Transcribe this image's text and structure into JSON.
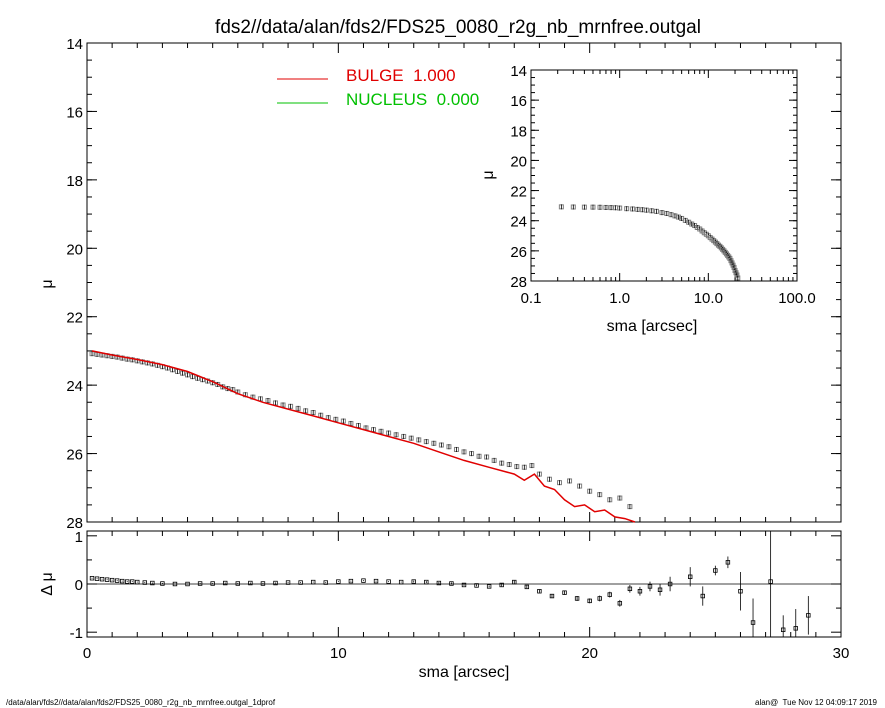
{
  "title": "fds2//data/alan/fds2/FDS25_0080_r2g_nb_mrnfree.outgal",
  "footer_left": "/data/alan/fds2//data/alan/fds2/FDS25_0080_r2g_nb_mrnfree.outgal_1dprof",
  "footer_right": "alan@  Tue Nov 12 04:09:17 2019",
  "colors": {
    "bulge": "#e00000",
    "nucleus": "#00c000",
    "points": "#808080"
  },
  "chart_data": [
    {
      "type": "scatter",
      "panel": "main",
      "xlabel": "",
      "ylabel": "μ",
      "xlim": [
        0,
        30
      ],
      "ylim": [
        28,
        14
      ],
      "xticks": [],
      "yticks": [
        "14",
        "16",
        "18",
        "20",
        "22",
        "24",
        "26",
        "28"
      ],
      "legend": [
        {
          "name": "BULGE  1.000",
          "color": "#e00000"
        },
        {
          "name": "NUCLEUS  0.000",
          "color": "#00c000"
        }
      ],
      "legend_position": "top-left",
      "series": [
        {
          "name": "data",
          "x": [
            0.2,
            0.4,
            0.6,
            0.8,
            1.0,
            1.2,
            1.4,
            1.6,
            1.8,
            2.0,
            2.2,
            2.4,
            2.6,
            2.8,
            3.0,
            3.2,
            3.4,
            3.6,
            3.8,
            4.0,
            4.2,
            4.4,
            4.6,
            4.8,
            5.0,
            5.2,
            5.4,
            5.6,
            5.8,
            6.0,
            6.3,
            6.6,
            6.9,
            7.2,
            7.5,
            7.8,
            8.1,
            8.4,
            8.7,
            9.0,
            9.3,
            9.6,
            9.9,
            10.2,
            10.5,
            10.8,
            11.1,
            11.4,
            11.7,
            12.0,
            12.3,
            12.6,
            12.9,
            13.2,
            13.5,
            13.8,
            14.1,
            14.4,
            14.7,
            15.0,
            15.3,
            15.6,
            15.9,
            16.2,
            16.5,
            16.8,
            17.1,
            17.4,
            17.7,
            18.0,
            18.4,
            18.8,
            19.2,
            19.6,
            20.0,
            20.4,
            20.8,
            21.2,
            21.6
          ],
          "y": [
            23.08,
            23.1,
            23.12,
            23.14,
            23.16,
            23.18,
            23.21,
            23.24,
            23.26,
            23.29,
            23.32,
            23.35,
            23.38,
            23.42,
            23.46,
            23.5,
            23.55,
            23.6,
            23.65,
            23.7,
            23.75,
            23.8,
            23.84,
            23.88,
            23.93,
            23.98,
            24.05,
            24.1,
            24.13,
            24.2,
            24.28,
            24.35,
            24.4,
            24.45,
            24.52,
            24.58,
            24.62,
            24.68,
            24.75,
            24.8,
            24.88,
            24.95,
            25.0,
            25.05,
            25.12,
            25.18,
            25.25,
            25.3,
            25.35,
            25.4,
            25.45,
            25.5,
            25.55,
            25.6,
            25.65,
            25.7,
            25.75,
            25.8,
            25.88,
            25.95,
            26.0,
            26.08,
            26.1,
            26.2,
            26.28,
            26.32,
            26.38,
            26.4,
            26.35,
            26.6,
            26.75,
            26.85,
            26.8,
            26.95,
            27.1,
            27.2,
            27.35,
            27.3,
            27.55
          ]
        },
        {
          "name": "BULGE  1.000",
          "x": [
            0.2,
            1,
            2,
            3,
            4,
            5,
            6,
            7,
            8,
            9,
            10,
            11,
            12,
            13,
            14,
            15,
            16,
            17,
            17.4,
            17.8,
            18.2,
            18.6,
            19,
            19.4,
            19.8,
            20.2,
            20.6,
            21,
            21.4,
            21.8
          ],
          "y": [
            23.0,
            23.12,
            23.25,
            23.4,
            23.6,
            23.9,
            24.25,
            24.5,
            24.7,
            24.9,
            25.1,
            25.3,
            25.5,
            25.7,
            25.95,
            26.2,
            26.4,
            26.6,
            26.78,
            26.6,
            26.95,
            27.05,
            27.35,
            27.55,
            27.5,
            27.7,
            27.65,
            27.85,
            27.9,
            28.0
          ]
        }
      ]
    },
    {
      "type": "scatter",
      "panel": "residual",
      "xlabel": "sma [arcsec]",
      "ylabel": "Δ μ",
      "xlim": [
        0,
        30
      ],
      "ylim": [
        -1.1,
        1.1
      ],
      "xticks": [
        "0",
        "10",
        "20",
        "30"
      ],
      "yticks": [
        "-1",
        "0",
        "1"
      ],
      "series": [
        {
          "name": "residual",
          "x": [
            0.2,
            0.4,
            0.6,
            0.8,
            1.0,
            1.2,
            1.4,
            1.6,
            1.8,
            2.0,
            2.3,
            2.6,
            3.0,
            3.5,
            4.0,
            4.5,
            5.0,
            5.5,
            6.0,
            6.5,
            7.0,
            7.5,
            8.0,
            8.5,
            9.0,
            9.5,
            10.0,
            10.5,
            11.0,
            11.5,
            12.0,
            12.5,
            13.0,
            13.5,
            14.0,
            14.5,
            15.0,
            15.5,
            16.0,
            16.5,
            17.0,
            17.5,
            18.0,
            18.5,
            19.0,
            19.5,
            20.0,
            20.4,
            20.8,
            21.2,
            21.6,
            22.0,
            22.4,
            22.8,
            23.2,
            24.0,
            24.5,
            25.0,
            25.5,
            26.0,
            26.5,
            27.2,
            27.7,
            28.2,
            28.7
          ],
          "y": [
            0.12,
            0.11,
            0.1,
            0.09,
            0.08,
            0.07,
            0.06,
            0.05,
            0.05,
            0.04,
            0.03,
            0.02,
            0.01,
            0.0,
            0.0,
            0.01,
            0.01,
            0.02,
            0.01,
            0.02,
            0.01,
            0.02,
            0.03,
            0.03,
            0.04,
            0.03,
            0.05,
            0.06,
            0.07,
            0.06,
            0.05,
            0.04,
            0.05,
            0.04,
            0.02,
            0.01,
            -0.02,
            -0.03,
            -0.05,
            -0.02,
            0.04,
            -0.06,
            -0.15,
            -0.25,
            -0.18,
            -0.3,
            -0.35,
            -0.3,
            -0.22,
            -0.4,
            -0.1,
            -0.15,
            -0.05,
            -0.12,
            0.0,
            0.15,
            -0.25,
            0.28,
            0.45,
            -0.15,
            -0.8,
            0.05,
            -0.95,
            -0.92,
            -0.65
          ],
          "err": [
            0.01,
            0.01,
            0.01,
            0.01,
            0.01,
            0.01,
            0.01,
            0.01,
            0.01,
            0.01,
            0.01,
            0.01,
            0.01,
            0.01,
            0.01,
            0.01,
            0.01,
            0.01,
            0.01,
            0.01,
            0.01,
            0.01,
            0.01,
            0.01,
            0.01,
            0.01,
            0.01,
            0.01,
            0.01,
            0.01,
            0.01,
            0.01,
            0.02,
            0.02,
            0.02,
            0.02,
            0.02,
            0.02,
            0.02,
            0.03,
            0.03,
            0.03,
            0.03,
            0.04,
            0.04,
            0.05,
            0.05,
            0.06,
            0.06,
            0.07,
            0.08,
            0.09,
            0.1,
            0.12,
            0.15,
            0.2,
            0.2,
            0.1,
            0.12,
            0.4,
            0.5,
            1.2,
            0.3,
            0.4,
            0.4
          ]
        }
      ]
    },
    {
      "type": "scatter",
      "panel": "inset",
      "xlabel": "sma [arcsec]",
      "ylabel": "μ",
      "xscale": "log",
      "xlim": [
        0.1,
        100
      ],
      "ylim": [
        28,
        14
      ],
      "xticks": [
        "0.1",
        "1.0",
        "10.0",
        "100.0"
      ],
      "yticks": [
        "14",
        "16",
        "18",
        "20",
        "22",
        "24",
        "26",
        "28"
      ],
      "series": [
        {
          "name": "data",
          "x": [
            0.22,
            0.3,
            0.4,
            0.5,
            0.6,
            0.7,
            0.8,
            0.9,
            1.0,
            1.2,
            1.4,
            1.6,
            1.8,
            2.0,
            2.3,
            2.6,
            3.0,
            3.4,
            3.8,
            4.2,
            4.6,
            5.0,
            5.5,
            6.0,
            6.5,
            7.0,
            7.5,
            8.0,
            8.5,
            9.0,
            9.5,
            10.0,
            10.5,
            11.0,
            11.5,
            12.0,
            12.5,
            13.0,
            13.5,
            14.0,
            14.5,
            15.0,
            15.5,
            16.0,
            16.5,
            17.0,
            17.5,
            18.0,
            18.5,
            19.0,
            19.5,
            20.0,
            20.5,
            21.0,
            21.5
          ],
          "y": [
            23.08,
            23.09,
            23.1,
            23.1,
            23.11,
            23.12,
            23.13,
            23.14,
            23.16,
            23.2,
            23.22,
            23.25,
            23.27,
            23.3,
            23.34,
            23.38,
            23.46,
            23.52,
            23.6,
            23.68,
            23.76,
            23.85,
            23.98,
            24.1,
            24.22,
            24.32,
            24.45,
            24.55,
            24.68,
            24.8,
            24.9,
            25.0,
            25.12,
            25.22,
            25.32,
            25.42,
            25.52,
            25.62,
            25.7,
            25.8,
            25.9,
            26.0,
            26.1,
            26.2,
            26.3,
            26.4,
            26.5,
            26.65,
            26.8,
            26.95,
            27.1,
            27.3,
            27.45,
            27.6,
            27.8
          ]
        }
      ]
    }
  ]
}
